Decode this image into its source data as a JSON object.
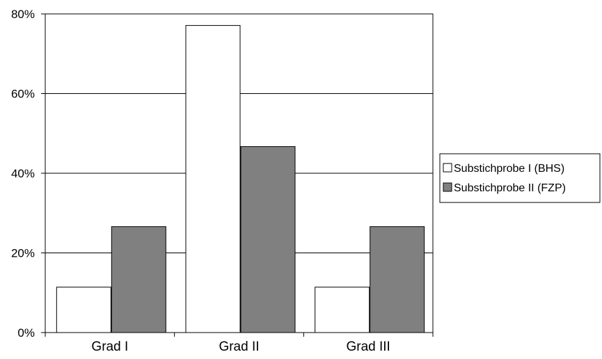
{
  "chart_data": {
    "type": "bar",
    "categories": [
      "Grad I",
      "Grad II",
      "Grad III"
    ],
    "series": [
      {
        "name": "Substichprobe I  (BHS)",
        "values": [
          11.4,
          77.1,
          11.4
        ],
        "color": "#ffffff"
      },
      {
        "name": "Substichprobe II (FZP)",
        "values": [
          26.6,
          46.7,
          26.6
        ],
        "color": "#808080"
      }
    ],
    "ylim": [
      0,
      80
    ],
    "yticks": [
      {
        "value": 0,
        "label": "0%"
      },
      {
        "value": 20,
        "label": "20%"
      },
      {
        "value": 40,
        "label": "40%"
      },
      {
        "value": 60,
        "label": "60%"
      },
      {
        "value": 80,
        "label": "80%"
      }
    ],
    "grid": true,
    "legend": "right",
    "title": "",
    "xlabel": "",
    "ylabel": ""
  }
}
